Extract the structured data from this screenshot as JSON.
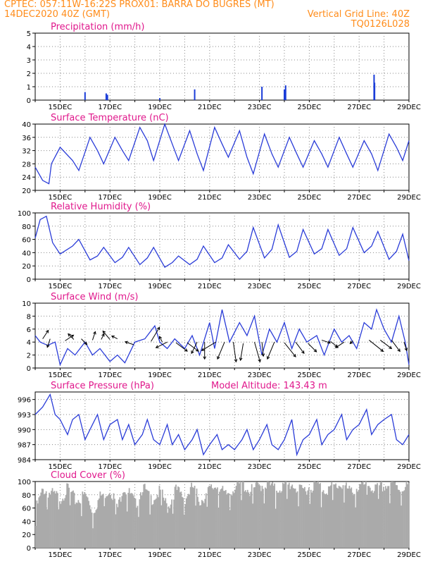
{
  "header": {
    "line1": "CPTEC:  057:11W-16:22S  PROX01: BARRA DO BUGRES (MT)",
    "line2": "14DEC2020 40Z (GMT)",
    "grid_note": "Vertical Grid Line: 40Z",
    "code": "TQ0126L028"
  },
  "colors": {
    "header": "#ff8c1a",
    "title": "#e0188c",
    "line": "#2a3cd8",
    "bar": "#1a3cd8",
    "cloud": "#aaaaaa",
    "grid": "#888888"
  },
  "x_ticks": [
    "15DEC",
    "17DEC",
    "19DEC",
    "21DEC",
    "23DEC",
    "25DEC",
    "27DEC",
    "29DEC"
  ],
  "chart_data": [
    {
      "type": "bar",
      "title": "Precipitation (mm/h)",
      "ylim": [
        0,
        5
      ],
      "yticks": [
        "0",
        "1",
        "2",
        "3",
        "4",
        "5"
      ],
      "values": [
        [
          2.0,
          0.6
        ],
        [
          2.85,
          0.5
        ],
        [
          2.9,
          0.4
        ],
        [
          5.0,
          0.15
        ],
        [
          6.4,
          0.8
        ],
        [
          9.1,
          1.0
        ],
        [
          10.0,
          0.8
        ],
        [
          10.05,
          1.1
        ],
        [
          13.6,
          1.9
        ],
        [
          13.62,
          1.3
        ]
      ],
      "grid": true
    },
    {
      "type": "line",
      "title": "Surface Temperature (nC)",
      "ylim": [
        20,
        40
      ],
      "yticks": [
        "20",
        "24",
        "28",
        "32",
        "36",
        "40"
      ],
      "values": [
        [
          0,
          27
        ],
        [
          0.3,
          23
        ],
        [
          0.55,
          22
        ],
        [
          0.65,
          28
        ],
        [
          1.0,
          33
        ],
        [
          1.5,
          29
        ],
        [
          1.75,
          26
        ],
        [
          2.2,
          36
        ],
        [
          2.5,
          32
        ],
        [
          2.75,
          28
        ],
        [
          3.2,
          36
        ],
        [
          3.5,
          32
        ],
        [
          3.75,
          29
        ],
        [
          4.2,
          39
        ],
        [
          4.5,
          35
        ],
        [
          4.75,
          29
        ],
        [
          5.2,
          40
        ],
        [
          5.5,
          34
        ],
        [
          5.75,
          29
        ],
        [
          6.2,
          38
        ],
        [
          6.5,
          31
        ],
        [
          6.75,
          26
        ],
        [
          7.2,
          39
        ],
        [
          7.5,
          34
        ],
        [
          7.75,
          30
        ],
        [
          8.2,
          38
        ],
        [
          8.5,
          30
        ],
        [
          8.75,
          25
        ],
        [
          9.2,
          37
        ],
        [
          9.5,
          31
        ],
        [
          9.75,
          27
        ],
        [
          10.2,
          36
        ],
        [
          10.5,
          31
        ],
        [
          10.75,
          27
        ],
        [
          11.2,
          35
        ],
        [
          11.5,
          31
        ],
        [
          11.75,
          27
        ],
        [
          12.2,
          36
        ],
        [
          12.5,
          31
        ],
        [
          12.75,
          27
        ],
        [
          13.2,
          35
        ],
        [
          13.5,
          31
        ],
        [
          13.75,
          26
        ],
        [
          14.2,
          37
        ],
        [
          14.5,
          33
        ],
        [
          14.75,
          29
        ],
        [
          15.0,
          35
        ]
      ],
      "grid": true
    },
    {
      "type": "line",
      "title": "Relative Humidity (%)",
      "ylim": [
        0,
        100
      ],
      "yticks": [
        "0",
        "20",
        "40",
        "60",
        "80",
        "100"
      ],
      "values": [
        [
          0,
          62
        ],
        [
          0.2,
          90
        ],
        [
          0.45,
          95
        ],
        [
          0.7,
          55
        ],
        [
          1.0,
          38
        ],
        [
          1.5,
          50
        ],
        [
          1.75,
          60
        ],
        [
          2.2,
          29
        ],
        [
          2.5,
          35
        ],
        [
          2.75,
          48
        ],
        [
          3.2,
          25
        ],
        [
          3.5,
          33
        ],
        [
          3.75,
          48
        ],
        [
          4.2,
          22
        ],
        [
          4.5,
          32
        ],
        [
          4.75,
          48
        ],
        [
          5.2,
          18
        ],
        [
          5.5,
          25
        ],
        [
          5.75,
          35
        ],
        [
          6.2,
          22
        ],
        [
          6.5,
          30
        ],
        [
          6.75,
          50
        ],
        [
          7.2,
          25
        ],
        [
          7.5,
          32
        ],
        [
          7.75,
          52
        ],
        [
          8.2,
          30
        ],
        [
          8.5,
          42
        ],
        [
          8.75,
          78
        ],
        [
          9.2,
          32
        ],
        [
          9.5,
          45
        ],
        [
          9.75,
          82
        ],
        [
          10.2,
          33
        ],
        [
          10.5,
          42
        ],
        [
          10.75,
          75
        ],
        [
          11.2,
          38
        ],
        [
          11.5,
          46
        ],
        [
          11.75,
          75
        ],
        [
          12.2,
          36
        ],
        [
          12.5,
          46
        ],
        [
          12.75,
          78
        ],
        [
          13.2,
          40
        ],
        [
          13.5,
          50
        ],
        [
          13.75,
          72
        ],
        [
          14.2,
          30
        ],
        [
          14.5,
          42
        ],
        [
          14.75,
          68
        ],
        [
          15.0,
          28
        ]
      ],
      "grid": true
    },
    {
      "type": "line",
      "title": "Surface Wind (m/s)",
      "ylim": [
        0,
        10
      ],
      "yticks": [
        "0",
        "2",
        "4",
        "6",
        "8",
        "10"
      ],
      "values": [
        [
          0,
          5
        ],
        [
          0.2,
          4
        ],
        [
          0.5,
          3.5
        ],
        [
          0.8,
          4
        ],
        [
          1.0,
          0.5
        ],
        [
          1.3,
          3
        ],
        [
          1.6,
          2
        ],
        [
          2.0,
          4
        ],
        [
          2.3,
          2
        ],
        [
          2.6,
          3
        ],
        [
          3.0,
          1
        ],
        [
          3.3,
          2
        ],
        [
          3.6,
          0.8
        ],
        [
          4.0,
          4
        ],
        [
          4.4,
          4.5
        ],
        [
          4.8,
          6.5
        ],
        [
          5.0,
          4
        ],
        [
          5.3,
          3
        ],
        [
          5.6,
          4.5
        ],
        [
          6.0,
          3
        ],
        [
          6.3,
          5
        ],
        [
          6.6,
          2
        ],
        [
          7.0,
          7
        ],
        [
          7.2,
          3
        ],
        [
          7.5,
          9
        ],
        [
          7.8,
          4
        ],
        [
          8.2,
          7
        ],
        [
          8.5,
          5
        ],
        [
          8.8,
          8
        ],
        [
          9.1,
          2
        ],
        [
          9.4,
          6
        ],
        [
          9.7,
          4
        ],
        [
          10.0,
          7
        ],
        [
          10.3,
          3
        ],
        [
          10.6,
          6
        ],
        [
          10.9,
          4
        ],
        [
          11.3,
          5
        ],
        [
          11.6,
          2
        ],
        [
          12.0,
          6
        ],
        [
          12.3,
          4
        ],
        [
          12.6,
          5
        ],
        [
          12.9,
          3
        ],
        [
          13.2,
          7
        ],
        [
          13.5,
          6
        ],
        [
          13.7,
          9
        ],
        [
          14.0,
          6
        ],
        [
          14.3,
          4
        ],
        [
          14.6,
          8
        ],
        [
          14.85,
          4
        ],
        [
          15.0,
          0.5
        ]
      ],
      "arrows": [
        [
          0.3,
          4.5,
          0.2,
          0.3
        ],
        [
          0.6,
          4.5,
          -0.1,
          -0.3
        ],
        [
          1.2,
          4.2,
          0.3,
          0.2
        ],
        [
          1.55,
          4.4,
          -0.2,
          0.2
        ],
        [
          1.85,
          4.5,
          0.2,
          -0.2
        ],
        [
          2.3,
          4.3,
          0.1,
          0.3
        ],
        [
          2.65,
          4.4,
          0.1,
          0.2
        ],
        [
          3.0,
          4.4,
          -0.25,
          0.3
        ],
        [
          3.3,
          4.5,
          -0.2,
          0.1
        ],
        [
          3.95,
          3.6,
          -0.3,
          0.1
        ],
        [
          4.65,
          4.1,
          0.3,
          0.5
        ],
        [
          5.1,
          4.0,
          -0.1,
          0.2
        ],
        [
          5.3,
          4.0,
          -0.4,
          -0.2
        ],
        [
          5.65,
          3.9,
          0.4,
          -0.3
        ],
        [
          6.1,
          3.9,
          0.4,
          -0.3
        ],
        [
          6.5,
          4.0,
          -0.2,
          -0.4
        ],
        [
          6.8,
          4.0,
          0.0,
          -0.6
        ],
        [
          7.25,
          4.0,
          -0.5,
          -0.3
        ],
        [
          7.6,
          4.0,
          -0.25,
          -0.6
        ],
        [
          7.95,
          4.0,
          0.1,
          -0.7
        ],
        [
          8.35,
          3.8,
          -0.1,
          -0.6
        ],
        [
          8.8,
          4.0,
          0.2,
          -0.7
        ],
        [
          9.1,
          4.0,
          0.05,
          -0.5
        ],
        [
          9.6,
          4.0,
          -0.25,
          -0.6
        ],
        [
          10.0,
          3.9,
          0.4,
          -0.5
        ],
        [
          10.45,
          4.0,
          0.3,
          -0.4
        ],
        [
          10.95,
          3.8,
          0.3,
          -0.3
        ],
        [
          11.5,
          4.3,
          0.3,
          -0.1
        ],
        [
          11.85,
          4.1,
          0.25,
          -0.2
        ],
        [
          12.4,
          4.0,
          -0.3,
          -0.2
        ],
        [
          12.75,
          4.2,
          -0.1,
          -0.1
        ],
        [
          13.4,
          4.3,
          0.5,
          -0.4
        ],
        [
          13.85,
          4.3,
          0.4,
          -0.3
        ],
        [
          14.3,
          4.3,
          0.3,
          -0.4
        ],
        [
          14.8,
          4.0,
          0.1,
          -0.3
        ]
      ],
      "grid": true
    },
    {
      "type": "line",
      "title": "Surface Pressure (hPa)",
      "subtitle": "Model Altitude: 143.43 m",
      "ylim": [
        984,
        997.5
      ],
      "yticks": [
        "984",
        "987",
        "990",
        "993",
        "996"
      ],
      "values": [
        [
          0,
          993
        ],
        [
          0.3,
          994.5
        ],
        [
          0.6,
          997
        ],
        [
          0.8,
          993
        ],
        [
          1.0,
          992
        ],
        [
          1.3,
          989
        ],
        [
          1.5,
          992
        ],
        [
          1.75,
          993
        ],
        [
          2.0,
          988
        ],
        [
          2.3,
          991
        ],
        [
          2.5,
          993
        ],
        [
          2.75,
          988
        ],
        [
          3.0,
          991
        ],
        [
          3.3,
          992
        ],
        [
          3.5,
          988
        ],
        [
          3.75,
          991
        ],
        [
          4.0,
          987
        ],
        [
          4.3,
          989
        ],
        [
          4.5,
          992
        ],
        [
          4.75,
          988
        ],
        [
          5.0,
          987
        ],
        [
          5.3,
          991
        ],
        [
          5.5,
          987
        ],
        [
          5.75,
          989
        ],
        [
          6.0,
          986
        ],
        [
          6.3,
          988
        ],
        [
          6.5,
          990
        ],
        [
          6.75,
          985
        ],
        [
          7.0,
          987
        ],
        [
          7.3,
          989
        ],
        [
          7.5,
          986
        ],
        [
          7.75,
          987
        ],
        [
          8.0,
          986
        ],
        [
          8.3,
          988
        ],
        [
          8.5,
          990
        ],
        [
          8.75,
          986
        ],
        [
          9.0,
          988
        ],
        [
          9.3,
          991
        ],
        [
          9.5,
          987
        ],
        [
          9.75,
          986
        ],
        [
          10.0,
          988
        ],
        [
          10.3,
          992
        ],
        [
          10.5,
          985
        ],
        [
          10.75,
          988
        ],
        [
          11.0,
          989
        ],
        [
          11.3,
          992
        ],
        [
          11.5,
          987
        ],
        [
          11.75,
          989
        ],
        [
          12.0,
          990
        ],
        [
          12.3,
          993
        ],
        [
          12.5,
          988
        ],
        [
          12.75,
          990
        ],
        [
          13.0,
          991
        ],
        [
          13.3,
          994
        ],
        [
          13.5,
          989
        ],
        [
          13.75,
          991
        ],
        [
          14.0,
          992
        ],
        [
          14.3,
          993
        ],
        [
          14.5,
          988
        ],
        [
          14.75,
          987
        ],
        [
          15.0,
          989
        ]
      ],
      "grid": true
    },
    {
      "type": "area",
      "title": "Cloud Cover (%)",
      "ylim": [
        0,
        100
      ],
      "yticks": [
        "0",
        "20",
        "40",
        "60",
        "80",
        "100"
      ],
      "values": [
        [
          0,
          58
        ],
        [
          0.3,
          88
        ],
        [
          0.6,
          82
        ],
        [
          1.0,
          75
        ],
        [
          1.3,
          90
        ],
        [
          1.6,
          70
        ],
        [
          2.0,
          80
        ],
        [
          2.3,
          55
        ],
        [
          2.6,
          78
        ],
        [
          3.0,
          88
        ],
        [
          3.3,
          60
        ],
        [
          3.5,
          92
        ],
        [
          3.8,
          80
        ],
        [
          4.0,
          65
        ],
        [
          4.3,
          93
        ],
        [
          4.6,
          72
        ],
        [
          5.0,
          85
        ],
        [
          5.3,
          60
        ],
        [
          5.6,
          88
        ],
        [
          6.0,
          75
        ],
        [
          6.3,
          92
        ],
        [
          6.6,
          70
        ],
        [
          7.0,
          88
        ],
        [
          7.3,
          95
        ],
        [
          7.6,
          78
        ],
        [
          8.0,
          92
        ],
        [
          8.3,
          96
        ],
        [
          8.6,
          85
        ],
        [
          9.0,
          94
        ],
        [
          9.3,
          97
        ],
        [
          9.6,
          88
        ],
        [
          10.0,
          93
        ],
        [
          10.3,
          96
        ],
        [
          10.6,
          85
        ],
        [
          11.0,
          92
        ],
        [
          11.3,
          96
        ],
        [
          11.6,
          87
        ],
        [
          12.0,
          93
        ],
        [
          12.3,
          96
        ],
        [
          12.6,
          84
        ],
        [
          13.0,
          92
        ],
        [
          13.3,
          96
        ],
        [
          13.6,
          88
        ],
        [
          14.0,
          93
        ],
        [
          14.3,
          96
        ],
        [
          14.6,
          90
        ],
        [
          15.0,
          95
        ]
      ],
      "grid": true
    }
  ]
}
